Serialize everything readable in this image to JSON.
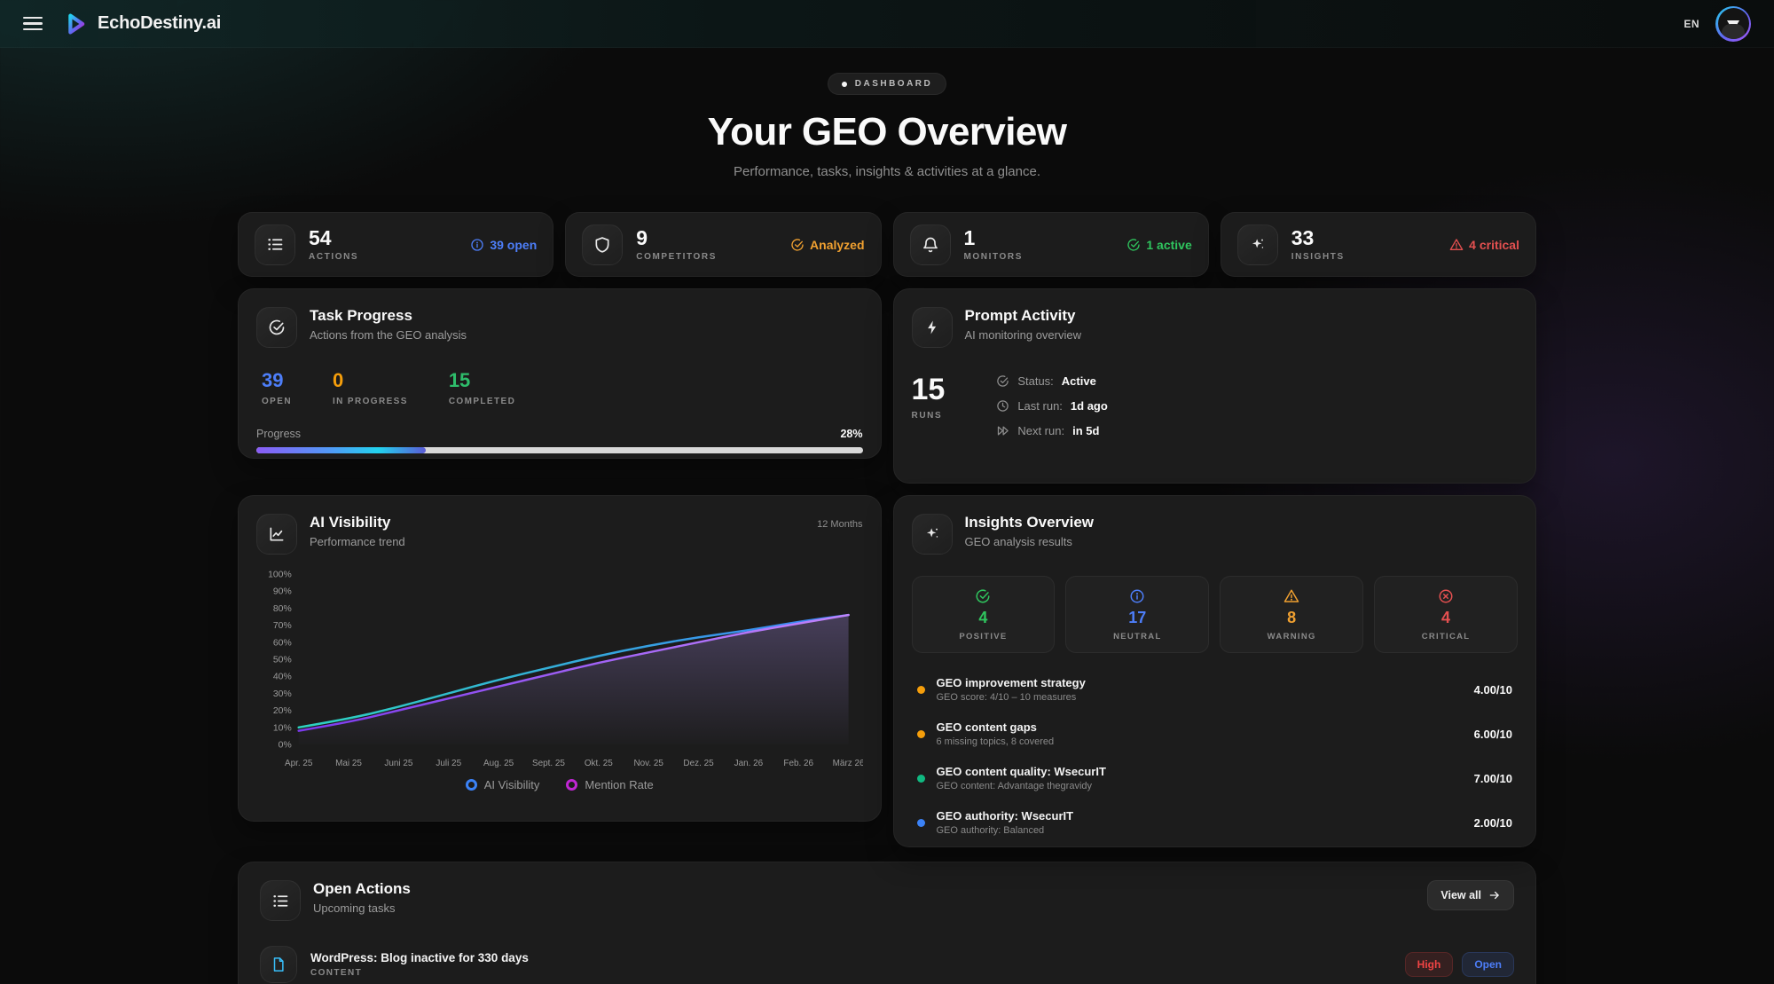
{
  "nav": {
    "brand": "EchoDestiny.ai",
    "language": "EN"
  },
  "hero": {
    "badge": "DASHBOARD",
    "title": "Your GEO Overview",
    "subtitle": "Performance, tasks, insights & activities at a glance."
  },
  "stats": [
    {
      "value": "54",
      "label": "ACTIONS",
      "badge": "39 open",
      "badge_color": "#4d7ef9"
    },
    {
      "value": "9",
      "label": "COMPETITORS",
      "badge": "Analyzed",
      "badge_color": "#f0a030"
    },
    {
      "value": "1",
      "label": "MONITORS",
      "badge": "1 active",
      "badge_color": "#2fc55e"
    },
    {
      "value": "33",
      "label": "INSIGHTS",
      "badge": "4 critical",
      "badge_color": "#e45050"
    }
  ],
  "task_progress": {
    "title": "Task Progress",
    "subtitle": "Actions from the GEO analysis",
    "stats": [
      {
        "value": "39",
        "label": "OPEN",
        "color": "#4d7ef9"
      },
      {
        "value": "0",
        "label": "IN PROGRESS",
        "color": "#f59e0b"
      },
      {
        "value": "15",
        "label": "COMPLETED",
        "color": "#2ebd6b"
      }
    ],
    "progress_label": "Progress",
    "progress_value": "28%",
    "progress_width": "28%"
  },
  "prompt_activity": {
    "title": "Prompt Activity",
    "subtitle": "AI monitoring overview",
    "runs_value": "15",
    "runs_label": "RUNS",
    "rows": [
      {
        "label": "Status:",
        "value": "Active"
      },
      {
        "label": "Last run:",
        "value": "1d ago"
      },
      {
        "label": "Next run:",
        "value": "in 5d"
      }
    ]
  },
  "chart_card": {
    "title": "AI Visibility",
    "subtitle": "Performance trend",
    "range_label": "12 Months"
  },
  "chart_data": {
    "type": "line",
    "title": "AI Visibility — Performance trend",
    "x": [
      "Apr. 25",
      "Mai 25",
      "Juni 25",
      "Juli 25",
      "Aug. 25",
      "Sept. 25",
      "Okt. 25",
      "Nov. 25",
      "Dez. 25",
      "Jan. 26",
      "Feb. 26",
      "März 26"
    ],
    "series": [
      {
        "name": "AI Visibility",
        "color_start": "#2dd4bf",
        "color_end": "#3b82f6",
        "values": [
          10,
          15,
          22,
          30,
          38,
          45,
          52,
          58,
          63,
          67,
          72,
          76
        ]
      },
      {
        "name": "Mention Rate",
        "color_start": "#7c3aed",
        "color_end": "#c084fc",
        "values": [
          8,
          13,
          20,
          27,
          34,
          41,
          48,
          54,
          60,
          66,
          71,
          76
        ]
      }
    ],
    "ylim": [
      0,
      100
    ],
    "y_tick_step": 10,
    "y_tick_suffix": "%",
    "grid": false,
    "legend_position": "bottom",
    "legend": [
      {
        "label": "AI Visibility",
        "color": "#3b82f6"
      },
      {
        "label": "Mention Rate",
        "color": "#c026d3"
      }
    ]
  },
  "insights": {
    "title": "Insights Overview",
    "subtitle": "GEO analysis results",
    "stats": [
      {
        "value": "4",
        "label": "POSITIVE",
        "color": "#2fc55e"
      },
      {
        "value": "17",
        "label": "NEUTRAL",
        "color": "#4d7ef9"
      },
      {
        "value": "8",
        "label": "WARNING",
        "color": "#f0a030"
      },
      {
        "value": "4",
        "label": "CRITICAL",
        "color": "#e45050"
      }
    ],
    "items": [
      {
        "dot_color": "#f59e0b",
        "title": "GEO improvement strategy",
        "subtitle": "GEO score: 4/10 – 10 measures",
        "score": "4.00/10"
      },
      {
        "dot_color": "#f59e0b",
        "title": "GEO content gaps",
        "subtitle": "6 missing topics, 8 covered",
        "score": "6.00/10"
      },
      {
        "dot_color": "#10b981",
        "title": "GEO content quality: WsecurIT",
        "subtitle": "GEO content: Advantage thegravidy",
        "score": "7.00/10"
      },
      {
        "dot_color": "#3b82f6",
        "title": "GEO authority: WsecurIT",
        "subtitle": "GEO authority: Balanced",
        "score": "2.00/10"
      }
    ]
  },
  "open_actions": {
    "title": "Open Actions",
    "subtitle": "Upcoming tasks",
    "view_all": "View all",
    "items": [
      {
        "title": "WordPress: Blog inactive for 330 days",
        "category": "CONTENT",
        "priority": "High",
        "status": "Open"
      }
    ]
  }
}
